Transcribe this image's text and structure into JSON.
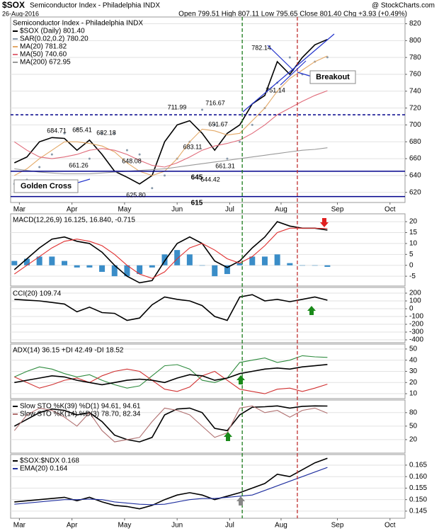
{
  "chart_data": [
    {
      "type": "line",
      "symbol": "$SOX",
      "title": "Semiconductor Index - Philadelphia INDX",
      "date": "26-Aug-2016",
      "ohlc": "Open 799.51 High 807.11 Low 795.65 Close 801.40 Chg +3.93 (+0.49%)",
      "credit": "@ StockCharts.com",
      "series": [
        {
          "name": "$SOX (Daily) 801.40",
          "color": "#000000",
          "style": "line",
          "values": [
            655,
            662,
            680,
            685,
            684,
            670,
            682,
            665,
            645,
            638,
            630,
            640,
            680,
            700,
            705,
            690,
            670,
            690,
            700,
            725,
            735,
            775,
            760,
            780,
            795,
            801.4
          ]
        },
        {
          "name": "SAR(0.02,0.2) 780.20",
          "color": "#8899aa",
          "style": "dots",
          "values": [
            630,
            635,
            650,
            665,
            690,
            695,
            660,
            690,
            690,
            670,
            665,
            625,
            640,
            660,
            680,
            718,
            700,
            660,
            680,
            700,
            720,
            750,
            780,
            760,
            775,
            780.2
          ]
        },
        {
          "name": "MA(20) 781.82",
          "color": "#e3a866",
          "style": "line",
          "values": [
            640,
            648,
            660,
            670,
            680,
            680,
            678,
            675,
            668,
            655,
            645,
            640,
            645,
            660,
            680,
            695,
            693,
            688,
            690,
            705,
            720,
            740,
            755,
            765,
            775,
            781.82
          ]
        },
        {
          "name": "MA(50) 740.60",
          "color": "#e06b7a",
          "style": "line",
          "values": [
            680,
            670,
            662,
            660,
            662,
            665,
            670,
            672,
            670,
            665,
            658,
            652,
            650,
            655,
            662,
            670,
            675,
            678,
            682,
            690,
            700,
            712,
            720,
            728,
            735,
            740.6
          ]
        },
        {
          "name": "MA(200) 672.95",
          "color": "#999999",
          "style": "line",
          "values": [
            648,
            646,
            644,
            643,
            642,
            642,
            642,
            643,
            644,
            645,
            646,
            647,
            648,
            650,
            652,
            654,
            656,
            658,
            660,
            662,
            664,
            666,
            668,
            670,
            671,
            672.95
          ]
        }
      ],
      "ylim": [
        608,
        828
      ],
      "yticks": [
        620,
        640,
        660,
        680,
        700,
        720,
        740,
        760,
        780,
        800,
        820
      ],
      "xlim": [
        -0.3,
        31.2
      ],
      "xticks": [
        {
          "value": 0.4,
          "label": "Mar"
        },
        {
          "value": 4.6,
          "label": "Apr"
        },
        {
          "value": 8.8,
          "label": "May"
        },
        {
          "value": 13,
          "label": "Jun"
        },
        {
          "value": 17.2,
          "label": "Jul"
        },
        {
          "value": 21.3,
          "label": "Aug"
        },
        {
          "value": 25.8,
          "label": "Sep"
        },
        {
          "value": 30,
          "label": "Oct"
        }
      ],
      "hlines": [
        {
          "value": 712,
          "dash": true,
          "show_value": false
        },
        {
          "value": 645,
          "dash": false,
          "show_value": true
        },
        {
          "value": 615,
          "dash": false,
          "show_value": true
        }
      ],
      "vlines": [
        {
          "value": 18.2,
          "color": "#1a7a1a"
        },
        {
          "value": 22.6,
          "color": "#c03030"
        }
      ],
      "annotations": [
        "684.71",
        "685.41",
        "682.18",
        "661.26",
        "648.08",
        "625.80",
        "711.99",
        "716.67",
        "691.67",
        "683.11",
        "661.31",
        "644.42",
        "782.14",
        "751.14"
      ],
      "notes": [
        "Golden Cross",
        "Breakout"
      ]
    },
    {
      "type": "line",
      "title": "MACD(12,26,9) 16.125, 16.840, -0.715",
      "series": [
        {
          "color": "#3a8dc8",
          "style": "bar",
          "values": [
            2,
            3,
            4,
            4,
            2,
            -1,
            -1,
            -3,
            -5,
            -5,
            -4,
            -1,
            5,
            7,
            5,
            0,
            -5,
            -4,
            1,
            4,
            4,
            5,
            1,
            0,
            0,
            -0.715
          ]
        },
        {
          "color": "#000000",
          "style": "line",
          "values": [
            -2,
            3,
            8,
            12,
            13,
            11,
            10,
            6,
            0,
            -5,
            -8,
            -7,
            2,
            10,
            13,
            10,
            2,
            -1,
            2,
            8,
            13,
            20,
            18,
            17,
            17,
            16.125
          ]
        },
        {
          "color": "#e03030",
          "style": "line",
          "values": [
            -4,
            0,
            4,
            8,
            11,
            12,
            11,
            9,
            5,
            0,
            -4,
            -6,
            -3,
            3,
            8,
            10,
            7,
            3,
            1,
            4,
            9,
            15,
            17,
            17,
            17,
            16.84
          ]
        }
      ],
      "ylim": [
        -9.5,
        23.6
      ],
      "yticks": [
        20,
        15,
        10,
        5,
        0,
        -5
      ]
    },
    {
      "type": "line",
      "title": "CCI(20) 109.74",
      "series": [
        {
          "color": "#000000",
          "style": "line",
          "values": [
            120,
            110,
            100,
            80,
            60,
            -40,
            20,
            -50,
            -60,
            -150,
            -120,
            50,
            150,
            120,
            100,
            40,
            -100,
            -150,
            150,
            180,
            100,
            120,
            90,
            120,
            150,
            109.74
          ]
        }
      ],
      "ylim": [
        -436,
        273
      ],
      "yticks": [
        200,
        100,
        0,
        -100,
        -200,
        -300,
        -400
      ]
    },
    {
      "type": "line",
      "title": "ADX(14) 36.15 +DI 42.49 -DI 18.52",
      "series": [
        {
          "color": "#2e8b3e",
          "style": "line",
          "values": [
            25,
            30,
            34,
            32,
            28,
            25,
            27,
            22,
            18,
            15,
            17,
            26,
            35,
            36,
            32,
            22,
            20,
            24,
            38,
            40,
            42,
            38,
            40,
            44,
            43,
            42.49
          ]
        },
        {
          "color": "#d03030",
          "style": "line",
          "values": [
            25,
            20,
            15,
            18,
            22,
            24,
            20,
            26,
            30,
            32,
            30,
            22,
            14,
            12,
            16,
            26,
            30,
            22,
            14,
            12,
            10,
            14,
            15,
            12,
            15,
            18.52
          ]
        },
        {
          "color": "#000000",
          "style": "line",
          "values": [
            20,
            22,
            24,
            26,
            25,
            22,
            20,
            18,
            20,
            22,
            23,
            22,
            20,
            24,
            27,
            26,
            22,
            24,
            28,
            30,
            32,
            33,
            32,
            34,
            35,
            36.15
          ]
        }
      ],
      "ylim": [
        5.6,
        54.4
      ],
      "yticks": [
        50,
        40,
        30,
        20,
        10
      ]
    },
    {
      "type": "line",
      "series": [
        {
          "name": "Slow STO %K(39) %D(1) 94.61, 94.61",
          "color": "#000000",
          "style": "line",
          "values": [
            50,
            65,
            80,
            88,
            85,
            75,
            80,
            60,
            30,
            20,
            15,
            25,
            75,
            88,
            90,
            80,
            45,
            40,
            75,
            92,
            93,
            95,
            90,
            94,
            95,
            94.61
          ]
        },
        {
          "name": "Slow STO %K(14) %D(3) 78.70, 82.34",
          "color": "#b07070",
          "style": "line",
          "values": [
            40,
            75,
            90,
            85,
            70,
            50,
            80,
            40,
            15,
            20,
            25,
            60,
            90,
            85,
            75,
            50,
            25,
            35,
            90,
            95,
            80,
            85,
            70,
            85,
            90,
            78.7
          ]
        }
      ],
      "ylim": [
        -10,
        108
      ],
      "yticks": [
        80,
        50,
        20
      ]
    },
    {
      "type": "line",
      "series": [
        {
          "name": "$SOX:$NDX 0.168",
          "color": "#000000",
          "style": "line",
          "values": [
            0.149,
            0.1495,
            0.15,
            0.1505,
            0.151,
            0.1495,
            0.151,
            0.149,
            0.1475,
            0.147,
            0.146,
            0.1475,
            0.15,
            0.152,
            0.153,
            0.152,
            0.15,
            0.1515,
            0.153,
            0.155,
            0.157,
            0.161,
            0.16,
            0.163,
            0.166,
            0.168
          ]
        },
        {
          "name": "EMA(20) 0.164",
          "color": "#1f2f9f",
          "style": "line",
          "values": [
            0.148,
            0.1485,
            0.149,
            0.1495,
            0.15,
            0.15,
            0.1502,
            0.15,
            0.149,
            0.1485,
            0.148,
            0.1478,
            0.148,
            0.149,
            0.15,
            0.1505,
            0.1505,
            0.151,
            0.1515,
            0.152,
            0.154,
            0.156,
            0.158,
            0.16,
            0.162,
            0.164
          ]
        }
      ],
      "ylim": [
        0.1419,
        0.1696
      ],
      "yticks": [
        0.165,
        {
          "value": 0.16,
          "label": "0.160"
        },
        0.155,
        {
          "value": 0.15,
          "label": "0.150"
        },
        0.145
      ],
      "xlim": [
        -0.3,
        31.2
      ],
      "xticks": [
        {
          "value": 0.4,
          "label": "Mar"
        },
        {
          "value": 4.6,
          "label": "Apr"
        },
        {
          "value": 8.8,
          "label": "May"
        },
        {
          "value": 13,
          "label": "Jun"
        },
        {
          "value": 17.2,
          "label": "Jul"
        },
        {
          "value": 21.3,
          "label": "Aug"
        },
        {
          "value": 25.8,
          "label": "Sep"
        },
        {
          "value": 30,
          "label": "Oct"
        }
      ]
    }
  ]
}
